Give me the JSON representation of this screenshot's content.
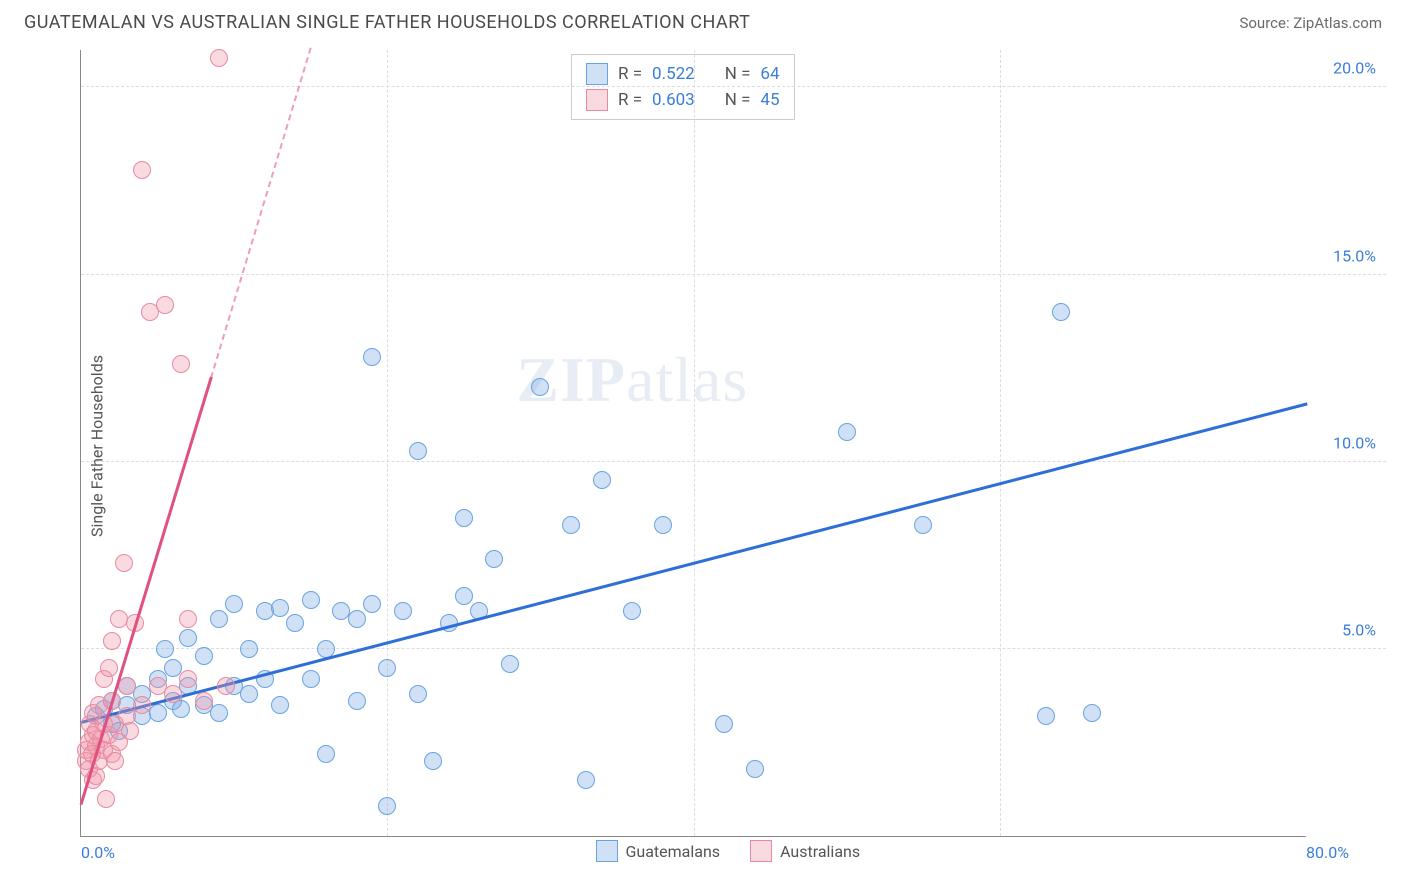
{
  "header": {
    "title": "GUATEMALAN VS AUSTRALIAN SINGLE FATHER HOUSEHOLDS CORRELATION CHART",
    "source": "Source: ZipAtlas.com"
  },
  "y_axis": {
    "label": "Single Father Households"
  },
  "watermark": {
    "zip": "ZIP",
    "atlas": "atlas"
  },
  "chart": {
    "type": "scatter",
    "xlim": [
      0,
      80
    ],
    "ylim": [
      0,
      21
    ],
    "x_ticks": [
      0,
      20,
      40,
      60,
      80
    ],
    "y_ticks": [
      5,
      10,
      15,
      20
    ],
    "x_tick_labels": {
      "0": "0.0%",
      "80": "80.0%"
    },
    "y_tick_labels": {
      "5": "5.0%",
      "10": "10.0%",
      "15": "15.0%",
      "20": "20.0%"
    },
    "grid_color": "#dddddd",
    "axis_color": "#888888",
    "background_color": "#ffffff",
    "point_radius": 9,
    "series": [
      {
        "name": "Guatemalans",
        "fill": "rgba(120,170,230,0.35)",
        "stroke": "#6aa3e0",
        "trend_color": "#2d6fd6",
        "trend": {
          "x1": 0,
          "y1": 3.0,
          "x2": 80,
          "y2": 11.5
        },
        "points": [
          [
            1,
            3.2
          ],
          [
            1.5,
            3.4
          ],
          [
            2,
            3.0
          ],
          [
            2,
            3.6
          ],
          [
            2.5,
            2.8
          ],
          [
            3,
            3.5
          ],
          [
            3,
            4.0
          ],
          [
            4,
            3.2
          ],
          [
            4,
            3.8
          ],
          [
            5,
            3.3
          ],
          [
            5,
            4.2
          ],
          [
            5.5,
            5.0
          ],
          [
            6,
            3.6
          ],
          [
            6,
            4.5
          ],
          [
            6.5,
            3.4
          ],
          [
            7,
            5.3
          ],
          [
            7,
            4.0
          ],
          [
            8,
            3.5
          ],
          [
            8,
            4.8
          ],
          [
            9,
            3.3
          ],
          [
            9,
            5.8
          ],
          [
            10,
            4.0
          ],
          [
            10,
            6.2
          ],
          [
            11,
            3.8
          ],
          [
            11,
            5.0
          ],
          [
            12,
            4.2
          ],
          [
            12,
            6.0
          ],
          [
            13,
            3.5
          ],
          [
            13,
            6.1
          ],
          [
            14,
            5.7
          ],
          [
            15,
            4.2
          ],
          [
            15,
            6.3
          ],
          [
            16,
            5.0
          ],
          [
            16,
            2.2
          ],
          [
            17,
            6.0
          ],
          [
            18,
            5.8
          ],
          [
            18,
            3.6
          ],
          [
            19,
            6.2
          ],
          [
            19,
            12.8
          ],
          [
            20,
            4.5
          ],
          [
            20,
            0.8
          ],
          [
            21,
            6.0
          ],
          [
            22,
            3.8
          ],
          [
            22,
            10.3
          ],
          [
            23,
            2.0
          ],
          [
            24,
            5.7
          ],
          [
            25,
            6.4
          ],
          [
            25,
            8.5
          ],
          [
            26,
            6.0
          ],
          [
            27,
            7.4
          ],
          [
            28,
            4.6
          ],
          [
            30,
            12.0
          ],
          [
            32,
            8.3
          ],
          [
            33,
            1.5
          ],
          [
            34,
            9.5
          ],
          [
            36,
            6.0
          ],
          [
            38,
            8.3
          ],
          [
            42,
            3.0
          ],
          [
            44,
            1.8
          ],
          [
            50,
            10.8
          ],
          [
            55,
            8.3
          ],
          [
            63,
            3.2
          ],
          [
            64,
            14.0
          ],
          [
            66,
            3.3
          ]
        ]
      },
      {
        "name": "Australians",
        "fill": "rgba(240,150,170,0.35)",
        "stroke": "#e88aa0",
        "trend_color": "#e05080",
        "trend": {
          "x1": 0,
          "y1": 0.8,
          "x2": 8.5,
          "y2": 12.2
        },
        "trend_ext": {
          "x1": 8.5,
          "y1": 12.2,
          "x2": 15,
          "y2": 21
        },
        "points": [
          [
            0.3,
            2.0
          ],
          [
            0.3,
            2.3
          ],
          [
            0.5,
            2.5
          ],
          [
            0.5,
            1.8
          ],
          [
            0.6,
            3.0
          ],
          [
            0.7,
            2.2
          ],
          [
            0.8,
            2.7
          ],
          [
            0.8,
            1.5
          ],
          [
            0.8,
            3.3
          ],
          [
            1.0,
            2.4
          ],
          [
            1.0,
            2.8
          ],
          [
            1.0,
            1.6
          ],
          [
            1.2,
            2.0
          ],
          [
            1.2,
            3.5
          ],
          [
            1.3,
            2.6
          ],
          [
            1.5,
            4.2
          ],
          [
            1.5,
            2.3
          ],
          [
            1.5,
            3.0
          ],
          [
            1.6,
            1.0
          ],
          [
            1.8,
            2.7
          ],
          [
            1.8,
            4.5
          ],
          [
            2.0,
            2.2
          ],
          [
            2.0,
            3.6
          ],
          [
            2.0,
            5.2
          ],
          [
            2.2,
            2.0
          ],
          [
            2.2,
            3.0
          ],
          [
            2.5,
            5.8
          ],
          [
            2.5,
            2.5
          ],
          [
            2.8,
            7.3
          ],
          [
            3.0,
            3.2
          ],
          [
            3.0,
            4.0
          ],
          [
            3.2,
            2.8
          ],
          [
            3.5,
            5.7
          ],
          [
            4.0,
            3.5
          ],
          [
            4.0,
            17.8
          ],
          [
            4.5,
            14.0
          ],
          [
            5.0,
            4.0
          ],
          [
            5.5,
            14.2
          ],
          [
            6.0,
            3.8
          ],
          [
            6.5,
            12.6
          ],
          [
            7.0,
            4.2
          ],
          [
            7.0,
            5.8
          ],
          [
            8.0,
            3.6
          ],
          [
            9.0,
            20.8
          ],
          [
            9.5,
            4.0
          ]
        ]
      }
    ],
    "legend_stats": [
      {
        "swatch_fill": "rgba(120,170,230,0.35)",
        "swatch_stroke": "#6aa3e0",
        "r_label": "R =",
        "r": "0.522",
        "n_label": "N =",
        "n": "64"
      },
      {
        "swatch_fill": "rgba(240,150,170,0.35)",
        "swatch_stroke": "#e88aa0",
        "r_label": "R =",
        "r": "0.603",
        "n_label": "N =",
        "n": "45"
      }
    ],
    "legend_bottom": [
      {
        "swatch_fill": "rgba(120,170,230,0.35)",
        "swatch_stroke": "#6aa3e0",
        "label": "Guatemalans"
      },
      {
        "swatch_fill": "rgba(240,150,170,0.35)",
        "swatch_stroke": "#e88aa0",
        "label": "Australians"
      }
    ]
  }
}
